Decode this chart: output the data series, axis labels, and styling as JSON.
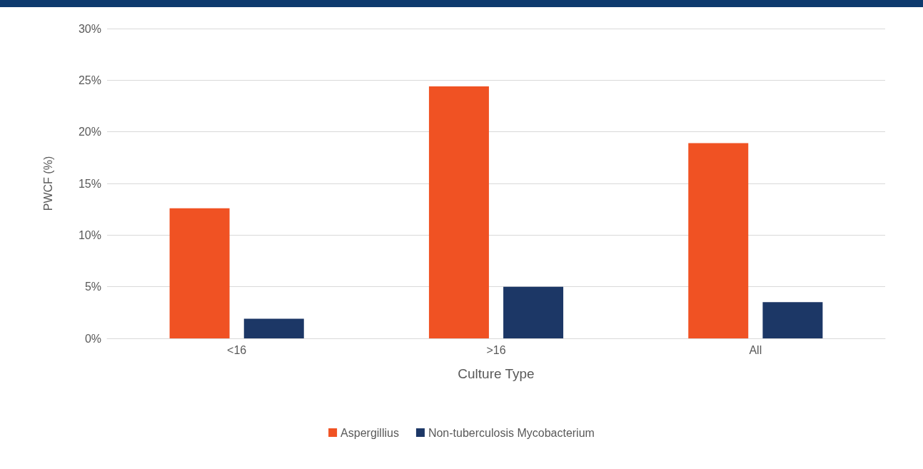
{
  "chart_data": {
    "type": "bar",
    "xlabel": "Culture Type",
    "ylabel": "PWCF (%)",
    "categories": [
      "<16",
      ">16",
      "All"
    ],
    "series": [
      {
        "name": "Aspergillius",
        "color": "#f05223",
        "values": [
          12.6,
          24.4,
          18.9
        ]
      },
      {
        "name": "Non-tuberculosis Mycobacterium",
        "color": "#1c3766",
        "values": [
          1.9,
          5.0,
          3.5
        ]
      }
    ],
    "ylim": [
      0,
      30
    ],
    "yticks": [
      {
        "value": 0,
        "label": "0%"
      },
      {
        "value": 5,
        "label": "5%"
      },
      {
        "value": 10,
        "label": "10%"
      },
      {
        "value": 15,
        "label": "15%"
      },
      {
        "value": 20,
        "label": "20%"
      },
      {
        "value": 25,
        "label": "25%"
      },
      {
        "value": 30,
        "label": "30%"
      }
    ],
    "grid": "y",
    "legend": "bottom"
  }
}
